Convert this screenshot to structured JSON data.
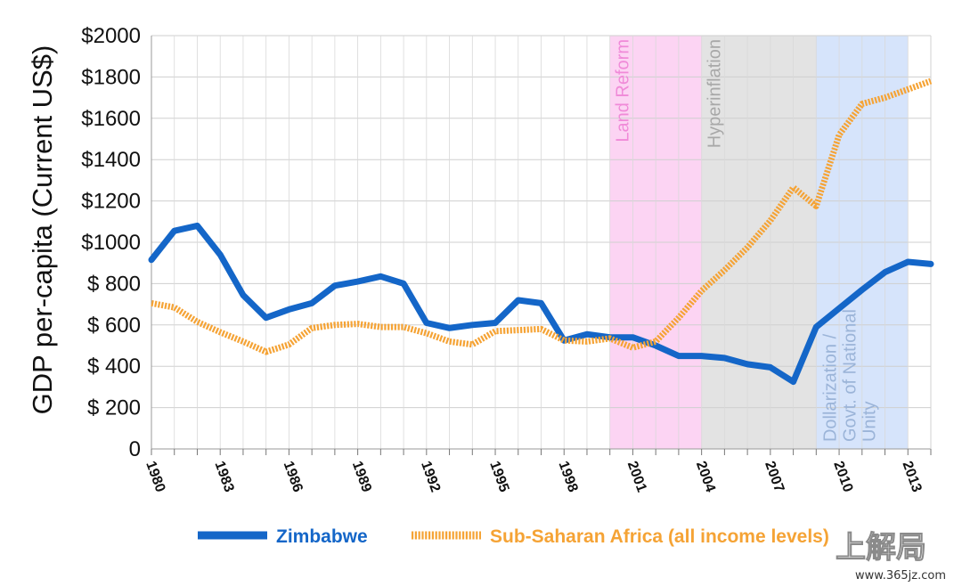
{
  "chart_data": {
    "type": "line",
    "ylabel": "GDP per-capita (Current US$)",
    "ylim": [
      0,
      2000
    ],
    "y_ticks": [
      "0",
      "$ 200",
      "$ 400",
      "$ 600",
      "$ 800",
      "$1000",
      "$1200",
      "$1400",
      "$1600",
      "$1800",
      "$2000"
    ],
    "x_ticks": [
      "1980",
      "1983",
      "1986",
      "1989",
      "1992",
      "1995",
      "1998",
      "2001",
      "2004",
      "2007",
      "2010",
      "2013"
    ],
    "x_range": [
      1980,
      2014
    ],
    "grid": true,
    "legend_position": "bottom",
    "bands": [
      {
        "label": "Land Reform",
        "start": 2000,
        "end": 2004,
        "color": "#fcd4f3",
        "text_color": "#f08ad8"
      },
      {
        "label": "Hyperinflation",
        "start": 2004,
        "end": 2009,
        "color": "#e3e3e3",
        "text_color": "#a8a8a8"
      },
      {
        "label_lines": [
          "Dollarization /",
          "Govt. of National",
          "Unity"
        ],
        "start": 2009,
        "end": 2013,
        "color": "#d6e4fb",
        "text_color": "#9bb4d8"
      }
    ],
    "series": [
      {
        "name": "Zimbabwe",
        "color": "#1466c8",
        "style": "solid",
        "x": [
          1980,
          1981,
          1982,
          1983,
          1984,
          1985,
          1986,
          1987,
          1988,
          1989,
          1990,
          1991,
          1992,
          1993,
          1994,
          1995,
          1996,
          1997,
          1998,
          1999,
          2000,
          2001,
          2002,
          2003,
          2004,
          2005,
          2006,
          2007,
          2008,
          2009,
          2010,
          2011,
          2012,
          2013,
          2014
        ],
        "values": [
          915,
          1055,
          1080,
          940,
          745,
          635,
          675,
          705,
          790,
          810,
          835,
          800,
          610,
          585,
          600,
          610,
          720,
          705,
          525,
          555,
          540,
          540,
          500,
          450,
          450,
          440,
          410,
          395,
          325,
          590,
          680,
          770,
          855,
          905,
          895
        ]
      },
      {
        "name": "Sub-Saharan Africa (all income levels)",
        "color": "#f5a335",
        "style": "dotted",
        "x": [
          1980,
          1981,
          1982,
          1983,
          1984,
          1985,
          1986,
          1987,
          1988,
          1989,
          1990,
          1991,
          1992,
          1993,
          1994,
          1995,
          1996,
          1997,
          1998,
          1999,
          2000,
          2001,
          2002,
          2003,
          2004,
          2005,
          2006,
          2007,
          2008,
          2009,
          2010,
          2011,
          2012,
          2013,
          2014
        ],
        "values": [
          705,
          685,
          615,
          565,
          520,
          470,
          505,
          585,
          600,
          605,
          590,
          590,
          560,
          520,
          505,
          570,
          575,
          580,
          525,
          520,
          535,
          490,
          520,
          635,
          765,
          865,
          975,
          1105,
          1265,
          1175,
          1520,
          1670,
          1700,
          1740,
          1780
        ]
      }
    ]
  },
  "watermark": {
    "text": "上解局",
    "url": "www.365jz.com"
  }
}
